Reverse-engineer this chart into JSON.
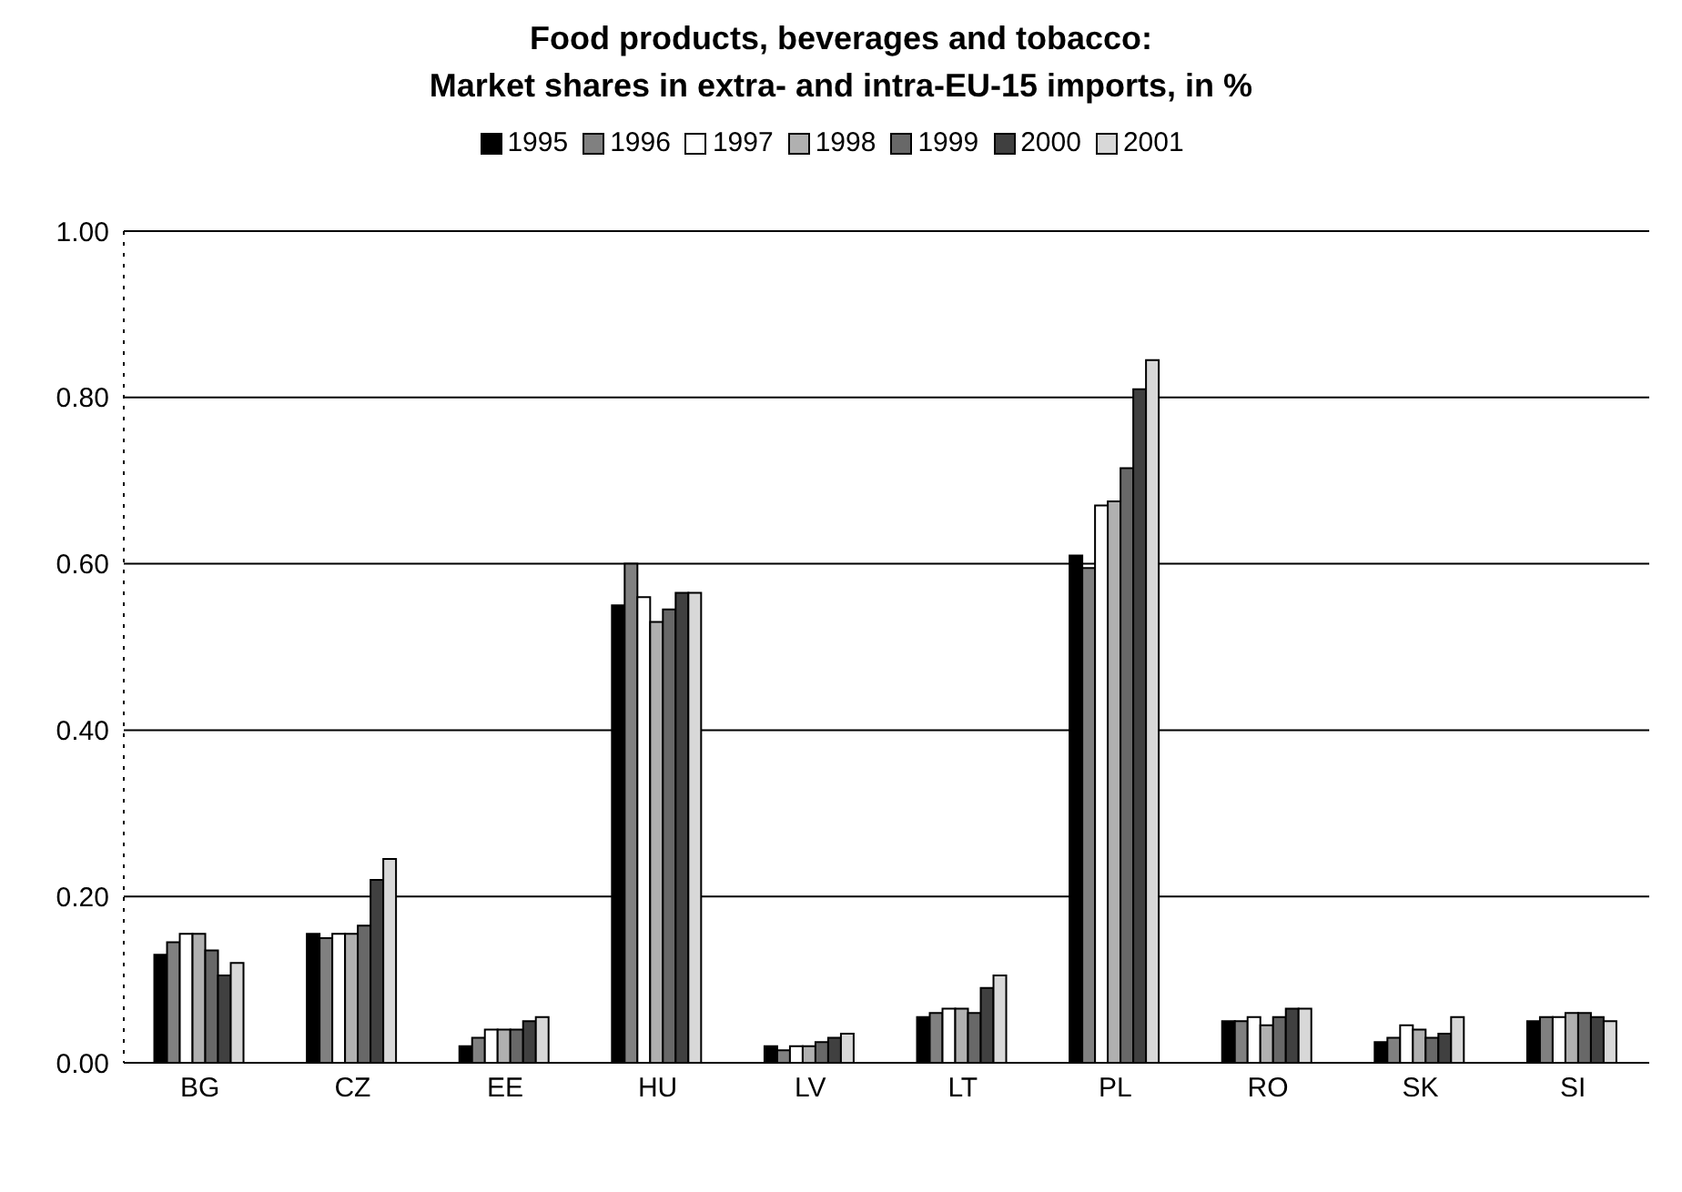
{
  "chart_data": {
    "type": "bar",
    "title": "Food products, beverages and tobacco:\nMarket shares in extra- and intra-EU-15 imports, in %",
    "categories": [
      "BG",
      "CZ",
      "EE",
      "HU",
      "LV",
      "LT",
      "PL",
      "RO",
      "SK",
      "SI"
    ],
    "series": [
      {
        "name": "1995",
        "color": "#000000",
        "values": [
          0.13,
          0.155,
          0.02,
          0.55,
          0.02,
          0.055,
          0.61,
          0.05,
          0.025,
          0.05
        ]
      },
      {
        "name": "1996",
        "color": "#808080",
        "values": [
          0.145,
          0.15,
          0.03,
          0.6,
          0.015,
          0.06,
          0.595,
          0.05,
          0.03,
          0.055
        ]
      },
      {
        "name": "1997",
        "color": "#ffffff",
        "values": [
          0.155,
          0.155,
          0.04,
          0.56,
          0.02,
          0.065,
          0.67,
          0.055,
          0.045,
          0.055
        ]
      },
      {
        "name": "1998",
        "color": "#b0b0b0",
        "values": [
          0.155,
          0.155,
          0.04,
          0.53,
          0.02,
          0.065,
          0.675,
          0.045,
          0.04,
          0.06
        ]
      },
      {
        "name": "1999",
        "color": "#686868",
        "values": [
          0.135,
          0.165,
          0.04,
          0.545,
          0.025,
          0.06,
          0.715,
          0.055,
          0.03,
          0.06
        ]
      },
      {
        "name": "2000",
        "color": "#404040",
        "values": [
          0.105,
          0.22,
          0.05,
          0.565,
          0.03,
          0.09,
          0.81,
          0.065,
          0.035,
          0.055
        ]
      },
      {
        "name": "2001",
        "color": "#d8d8d8",
        "values": [
          0.12,
          0.245,
          0.055,
          0.565,
          0.035,
          0.105,
          0.845,
          0.065,
          0.055,
          0.05
        ]
      }
    ],
    "ylim": [
      0,
      1
    ],
    "yticks": [
      {
        "value": 0,
        "label": "0.00"
      },
      {
        "value": 0.2,
        "label": "0.20"
      },
      {
        "value": 0.4,
        "label": "0.40"
      },
      {
        "value": 0.6,
        "label": "0.60"
      },
      {
        "value": 0.8,
        "label": "0.80"
      },
      {
        "value": 1,
        "label": "1.00"
      }
    ],
    "grid": "y",
    "legend": "top"
  }
}
